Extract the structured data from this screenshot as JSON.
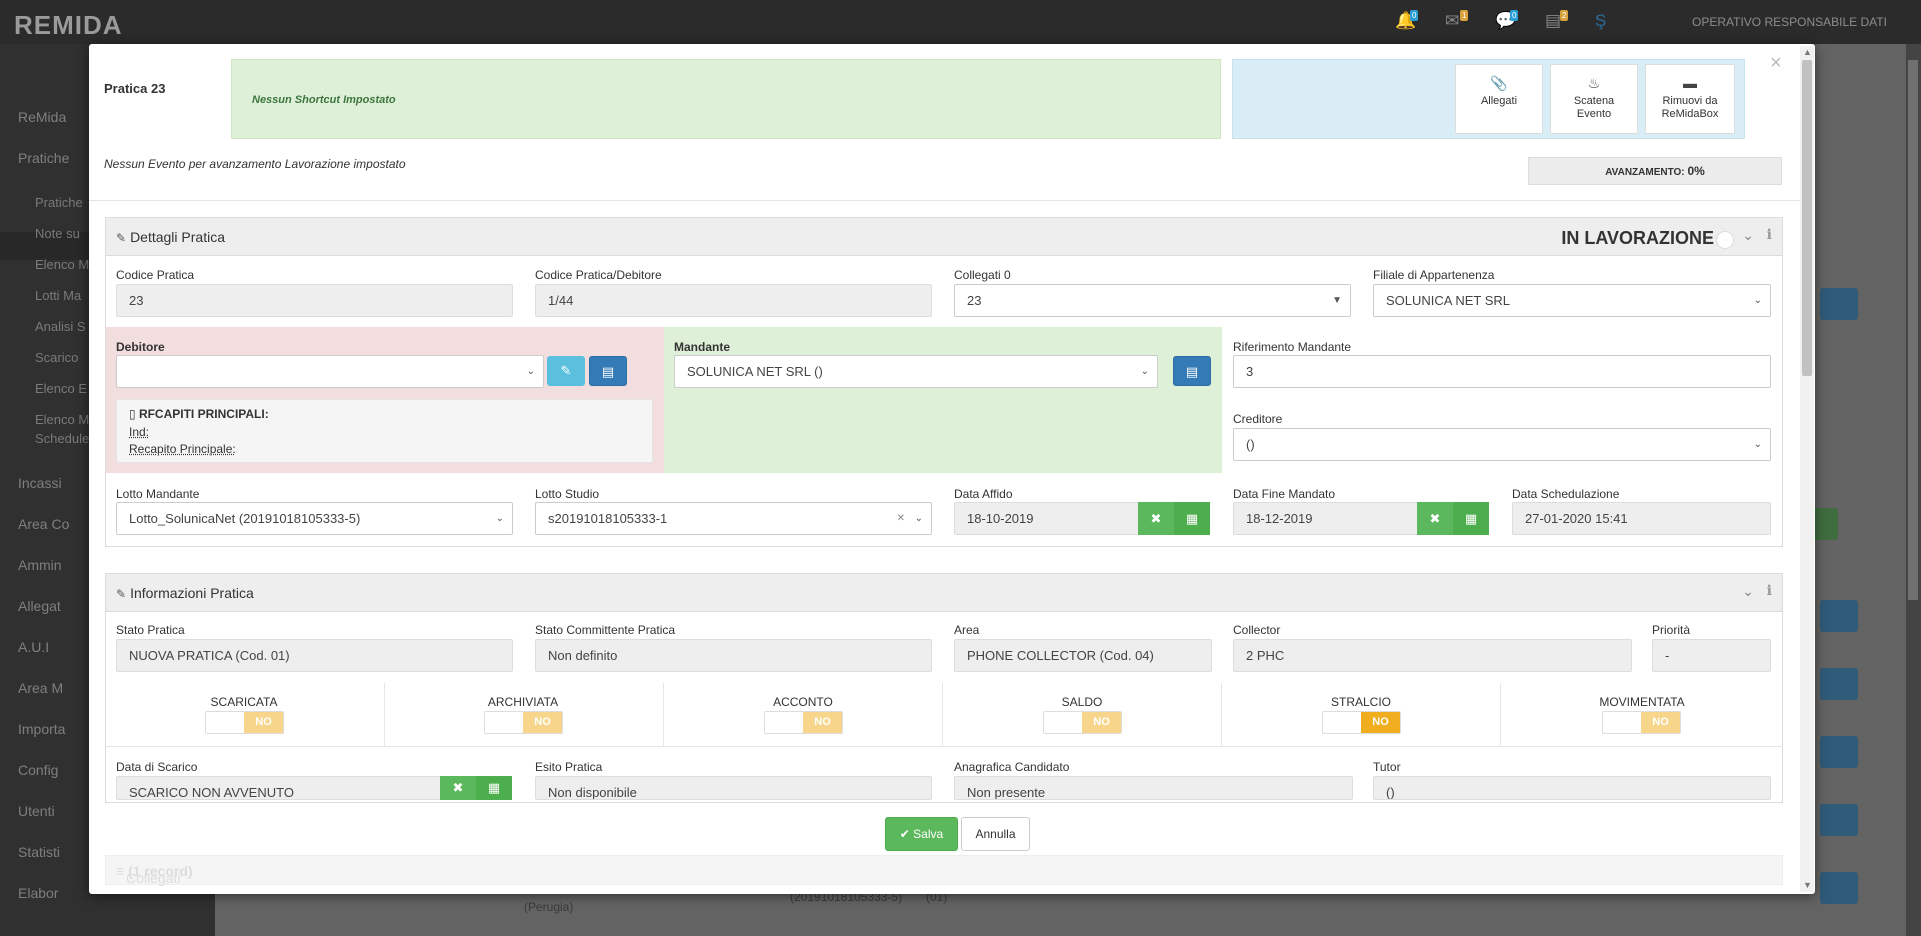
{
  "app": {
    "logo": "REMIDA",
    "user_label": "OPERATIVO RESPONSABILE DATI",
    "notif_counts": [
      "0",
      "1",
      "0",
      "2"
    ]
  },
  "sidebar": {
    "items": [
      {
        "label": "ReMida"
      },
      {
        "label": "Pratiche"
      },
      {
        "label": "Incassi"
      },
      {
        "label": "Area Co"
      },
      {
        "label": "Ammin"
      },
      {
        "label": "Allegat"
      },
      {
        "label": "A.U.I"
      },
      {
        "label": "Area M"
      },
      {
        "label": "Importa"
      },
      {
        "label": "Config"
      },
      {
        "label": "Utenti"
      },
      {
        "label": "Statisti"
      },
      {
        "label": "Elabor"
      }
    ],
    "sub_items": [
      {
        "label": "Pratiche"
      },
      {
        "label": "Note su"
      },
      {
        "label": "Elenco M"
      },
      {
        "label": "Lotti Ma"
      },
      {
        "label": "Analisi S"
      },
      {
        "label": "Scarico"
      },
      {
        "label": "Elenco E"
      },
      {
        "label": "Elenco M"
      },
      {
        "label": "Schedule"
      }
    ]
  },
  "background": {
    "row1": "(Perugia)",
    "row2": "(20191018105333-5)",
    "row3": "(01)"
  },
  "modal": {
    "title": "Pratica 23",
    "shortcut_text": "Nessun Shortcut Impostato",
    "actions": {
      "allegati": "Allegati",
      "scatena1": "Scatena",
      "scatena2": "Evento",
      "rimuovi1": "Rimuovi da",
      "rimuovi2": "ReMidaBox"
    },
    "event_text": "Nessun Evento per avanzamento Lavorazione impostato",
    "progress_label": "AVANZAMENTO:",
    "progress_value": "0%",
    "progress_fraction": 0
  },
  "dettagli": {
    "title": "Dettagli Pratica",
    "status": "IN LAVORAZIONE",
    "codice_pratica": {
      "label": "Codice Pratica",
      "value": "23"
    },
    "codice_debitore": {
      "label": "Codice Pratica/Debitore",
      "value": "1/44"
    },
    "collegati": {
      "label": "Collegati 0",
      "value": "23"
    },
    "filiale": {
      "label": "Filiale di Appartenenza",
      "value": "SOLUNICA NET SRL"
    },
    "debitore": {
      "label": "Debitore",
      "value": ""
    },
    "recapiti": {
      "title": "RFCAPITI PRINCIPALI:",
      "ind": "Ind:",
      "recapito": "Recapito Principale:"
    },
    "mandante": {
      "label": "Mandante",
      "value": "SOLUNICA NET SRL ()"
    },
    "riferimento": {
      "label": "Riferimento Mandante",
      "value": "3"
    },
    "creditore": {
      "label": "Creditore",
      "value": "()"
    },
    "lotto_mandante": {
      "label": "Lotto Mandante",
      "value": "Lotto_SolunicaNet (20191018105333-5)"
    },
    "lotto_studio": {
      "label": "Lotto Studio",
      "value": "s20191018105333-1"
    },
    "data_affido": {
      "label": "Data Affido",
      "value": "18-10-2019"
    },
    "data_fine": {
      "label": "Data Fine Mandato",
      "value": "18-12-2019"
    },
    "data_sched": {
      "label": "Data Schedulazione",
      "value": "27-01-2020 15:41"
    }
  },
  "informazioni": {
    "title": "Informazioni Pratica",
    "stato": {
      "label": "Stato Pratica",
      "value": "NUOVA PRATICA (Cod. 01)"
    },
    "stato_committente": {
      "label": "Stato Committente Pratica",
      "value": "Non definito"
    },
    "area": {
      "label": "Area",
      "value": "PHONE COLLECTOR (Cod. 04)"
    },
    "collector": {
      "label": "Collector",
      "value": "2 PHC"
    },
    "priorita": {
      "label": "Priorità",
      "value": "-"
    },
    "toggles": [
      {
        "label": "SCARICATA",
        "value": "NO"
      },
      {
        "label": "ARCHIVIATA",
        "value": "NO"
      },
      {
        "label": "ACCONTO",
        "value": "NO"
      },
      {
        "label": "SALDO",
        "value": "NO"
      },
      {
        "label": "STRALCIO",
        "value": "NO"
      },
      {
        "label": "MOVIMENTATA",
        "value": "NO"
      }
    ],
    "data_scarico": {
      "label": "Data di Scarico",
      "value": "SCARICO NON AVVENUTO"
    },
    "esito": {
      "label": "Esito Pratica",
      "value": "Non disponibile"
    },
    "anagrafica": {
      "label": "Anagrafica Candidato",
      "value": "Non presente"
    },
    "tutor": {
      "label": "Tutor",
      "value": "()"
    }
  },
  "collegati_panel": {
    "title": "Collegati",
    "count": "(1 record)"
  },
  "footer": {
    "save": "Salva",
    "cancel": "Annulla"
  }
}
